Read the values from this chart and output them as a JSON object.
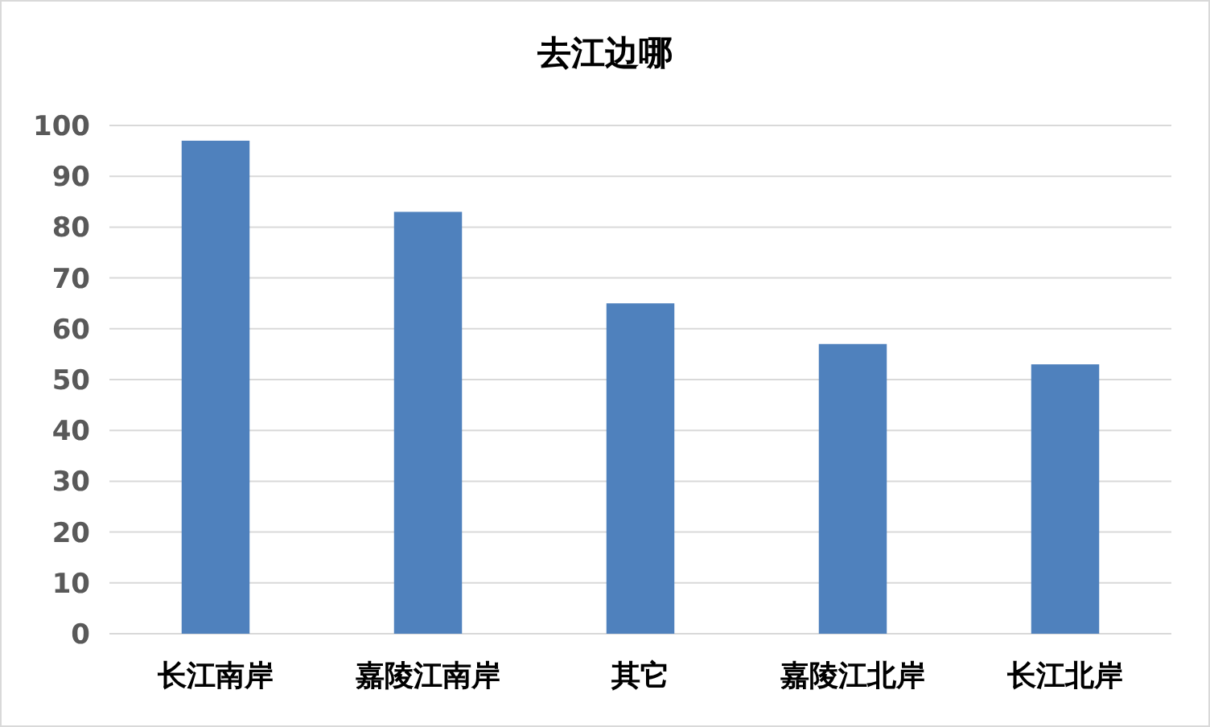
{
  "chart_data": {
    "type": "bar",
    "title": "去江边哪",
    "categories": [
      "长江南岸",
      "嘉陵江南岸",
      "其它",
      "嘉陵江北岸",
      "长江北岸"
    ],
    "values": [
      97,
      83,
      65,
      57,
      53
    ],
    "color": "#4f81bd",
    "ylim": [
      0,
      100
    ],
    "yticks": [
      0,
      10,
      20,
      30,
      40,
      50,
      60,
      70,
      80,
      90,
      100
    ],
    "grid": "y"
  }
}
